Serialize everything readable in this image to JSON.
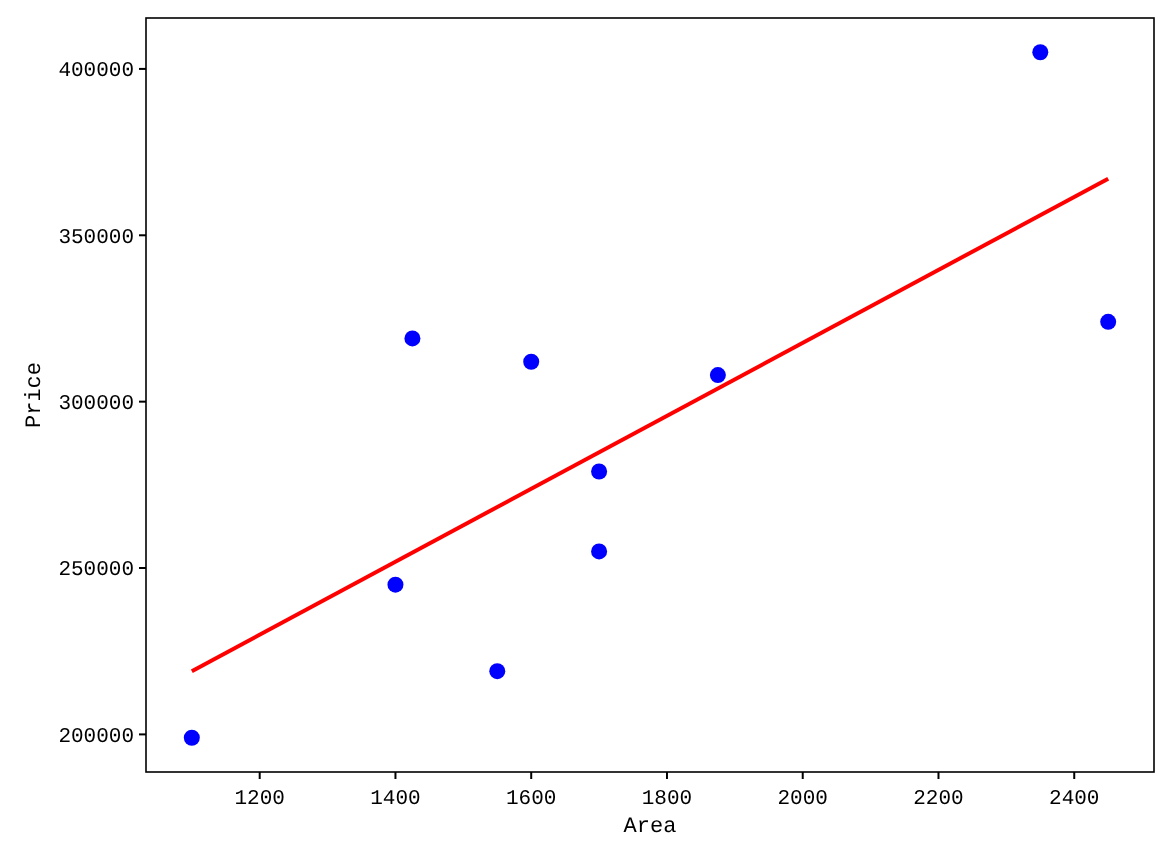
{
  "chart_data": {
    "type": "scatter",
    "xlabel": "Area",
    "ylabel": "Price",
    "x": [
      1400,
      1600,
      1700,
      1875,
      1100,
      1550,
      2350,
      2450,
      1425,
      1700
    ],
    "series": [
      {
        "color": "#0000ff",
        "marker": "circle",
        "values": [
          245000,
          312000,
          279000,
          308000,
          199000,
          219000,
          405000,
          324000,
          319000,
          255000
        ]
      },
      {
        "type": "line",
        "color": "#ff0000",
        "x": [
          1100,
          2450
        ],
        "values": [
          219000,
          367000
        ],
        "marker": "none",
        "line_style": "solid"
      }
    ],
    "xlim": [
      1032.5,
      2517.5
    ],
    "xticks": [
      1200,
      1400,
      1600,
      1800,
      2000,
      2200,
      2400
    ],
    "ylim": [
      188700,
      415300
    ],
    "yticks": [
      200000,
      250000,
      300000,
      350000,
      400000
    ],
    "grid": false
  }
}
